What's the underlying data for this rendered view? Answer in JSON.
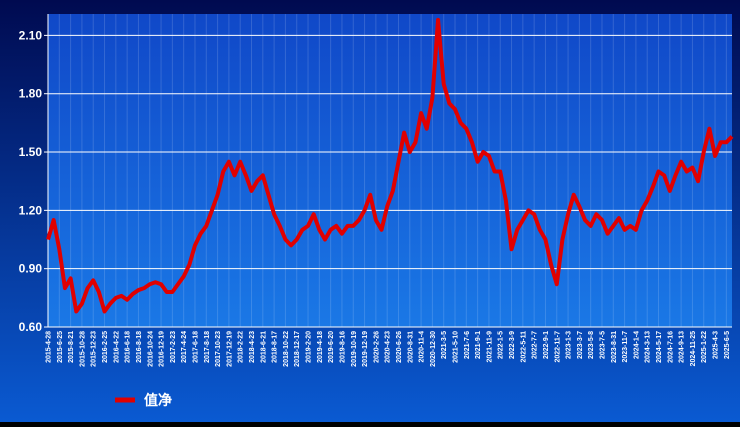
{
  "chart_data": {
    "type": "line",
    "categories": [
      "2015-4-28",
      null,
      "2015-6-25",
      null,
      "2015-8-21",
      null,
      "2015-10-28",
      null,
      "2015-12-23",
      null,
      "2016-2-25",
      null,
      "2016-4-22",
      null,
      "2016-6-18",
      null,
      "2016-8-18",
      null,
      "2016-10-24",
      null,
      "2016-12-19",
      null,
      "2017-2-23",
      null,
      "2017-4-24",
      null,
      "2017-6-18",
      null,
      "2017-8-18",
      null,
      "2017-10-23",
      null,
      "2017-12-19",
      null,
      "2018-2-22",
      null,
      "2018-4-23",
      null,
      "2018-6-21",
      null,
      "2018-8-17",
      null,
      "2018-10-22",
      null,
      "2018-12-17",
      null,
      "2019-2-20",
      null,
      "2019-4-18",
      null,
      "2019-6-20",
      null,
      "2019-8-16",
      null,
      "2019-10-19",
      null,
      "2019-12-19",
      null,
      "2020-2-26",
      null,
      "2020-4-23",
      null,
      "2020-6-26",
      null,
      "2020-8-31",
      null,
      "2020-11-4",
      null,
      "2020-12-30",
      null,
      "2021-3-5",
      null,
      "2021-5-10",
      null,
      "2021-7-6",
      null,
      "2021-9-1",
      null,
      "2021-11-9",
      null,
      "2022-1-5",
      null,
      "2022-3-9",
      null,
      "2022-5-11",
      null,
      "2022-7-7",
      null,
      "2022-9-1",
      null,
      "2022-11-7",
      null,
      "2023-1-3",
      null,
      "2023-3-7",
      null,
      "2023-5-8",
      null,
      "2023-7-5",
      null,
      "2023-8-31",
      null,
      "2023-11-7",
      null,
      "2024-1-4",
      null,
      "2024-3-13",
      null,
      "2024-5-17",
      null,
      "2024-7-16",
      null,
      "2024-9-13",
      null,
      "2024-11-25",
      null,
      "2025-1-22",
      null,
      "2025-4-3",
      null,
      "2025-6-5",
      null
    ],
    "series": [
      {
        "name": "值净",
        "color": "#e00000",
        "values": [
          1.05,
          1.15,
          1.0,
          0.8,
          0.85,
          0.68,
          0.72,
          0.8,
          0.84,
          0.78,
          0.68,
          0.72,
          0.75,
          0.76,
          0.74,
          0.77,
          0.79,
          0.8,
          0.82,
          0.83,
          0.82,
          0.78,
          0.78,
          0.82,
          0.86,
          0.92,
          1.02,
          1.08,
          1.12,
          1.2,
          1.28,
          1.4,
          1.45,
          1.38,
          1.45,
          1.38,
          1.3,
          1.35,
          1.38,
          1.28,
          1.18,
          1.12,
          1.05,
          1.02,
          1.05,
          1.1,
          1.12,
          1.18,
          1.1,
          1.05,
          1.1,
          1.12,
          1.08,
          1.12,
          1.12,
          1.15,
          1.2,
          1.28,
          1.15,
          1.1,
          1.22,
          1.3,
          1.45,
          1.6,
          1.5,
          1.55,
          1.7,
          1.62,
          1.78,
          2.18,
          1.85,
          1.75,
          1.72,
          1.65,
          1.62,
          1.55,
          1.45,
          1.5,
          1.48,
          1.4,
          1.4,
          1.25,
          1.0,
          1.1,
          1.15,
          1.2,
          1.18,
          1.1,
          1.05,
          0.92,
          0.82,
          1.05,
          1.18,
          1.28,
          1.22,
          1.15,
          1.12,
          1.18,
          1.15,
          1.08,
          1.12,
          1.16,
          1.1,
          1.12,
          1.1,
          1.2,
          1.25,
          1.32,
          1.4,
          1.38,
          1.3,
          1.38,
          1.45,
          1.4,
          1.42,
          1.35,
          1.5,
          1.62,
          1.48,
          1.55,
          1.55,
          1.58
        ]
      }
    ],
    "ylim": [
      0.6,
      2.21
    ],
    "yticks": [
      {
        "value": 0.6,
        "label": "0.60"
      },
      {
        "value": 0.9,
        "label": "0.90"
      },
      {
        "value": 1.2,
        "label": "1.20"
      },
      {
        "value": 1.5,
        "label": "1.50"
      },
      {
        "value": 1.8,
        "label": "1.80"
      },
      {
        "value": 2.1,
        "label": "2.10"
      }
    ],
    "grid": true
  }
}
